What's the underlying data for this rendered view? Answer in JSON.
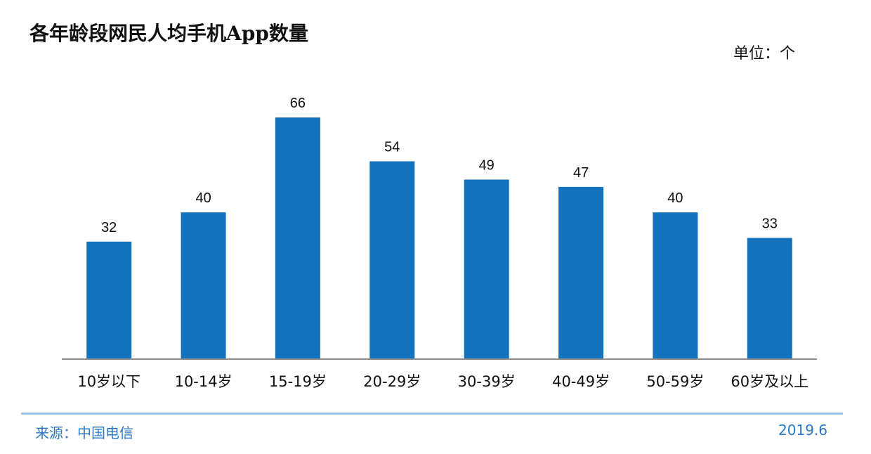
{
  "colors": {
    "bar": "#1572bd",
    "axis": "#8c8c8c",
    "footer": "#2a79c4",
    "rule": "#9ec3ea"
  },
  "chart_data": {
    "type": "bar",
    "title": "各年龄段网民人均手机App数量",
    "unit_label": "单位：个",
    "categories": [
      "10岁以下",
      "10-14岁",
      "15-19岁",
      "20-29岁",
      "30-39岁",
      "40-49岁",
      "50-59岁",
      "60岁及以上"
    ],
    "values": [
      32,
      40,
      66,
      54,
      49,
      47,
      40,
      33
    ],
    "value_labels": [
      "32",
      "40",
      "66",
      "54",
      "49",
      "47",
      "40",
      "33"
    ],
    "ylim": [
      0,
      72
    ],
    "grid": false,
    "legend": "none"
  },
  "footer": {
    "source": "来源：中国电信",
    "date": "2019.6"
  }
}
